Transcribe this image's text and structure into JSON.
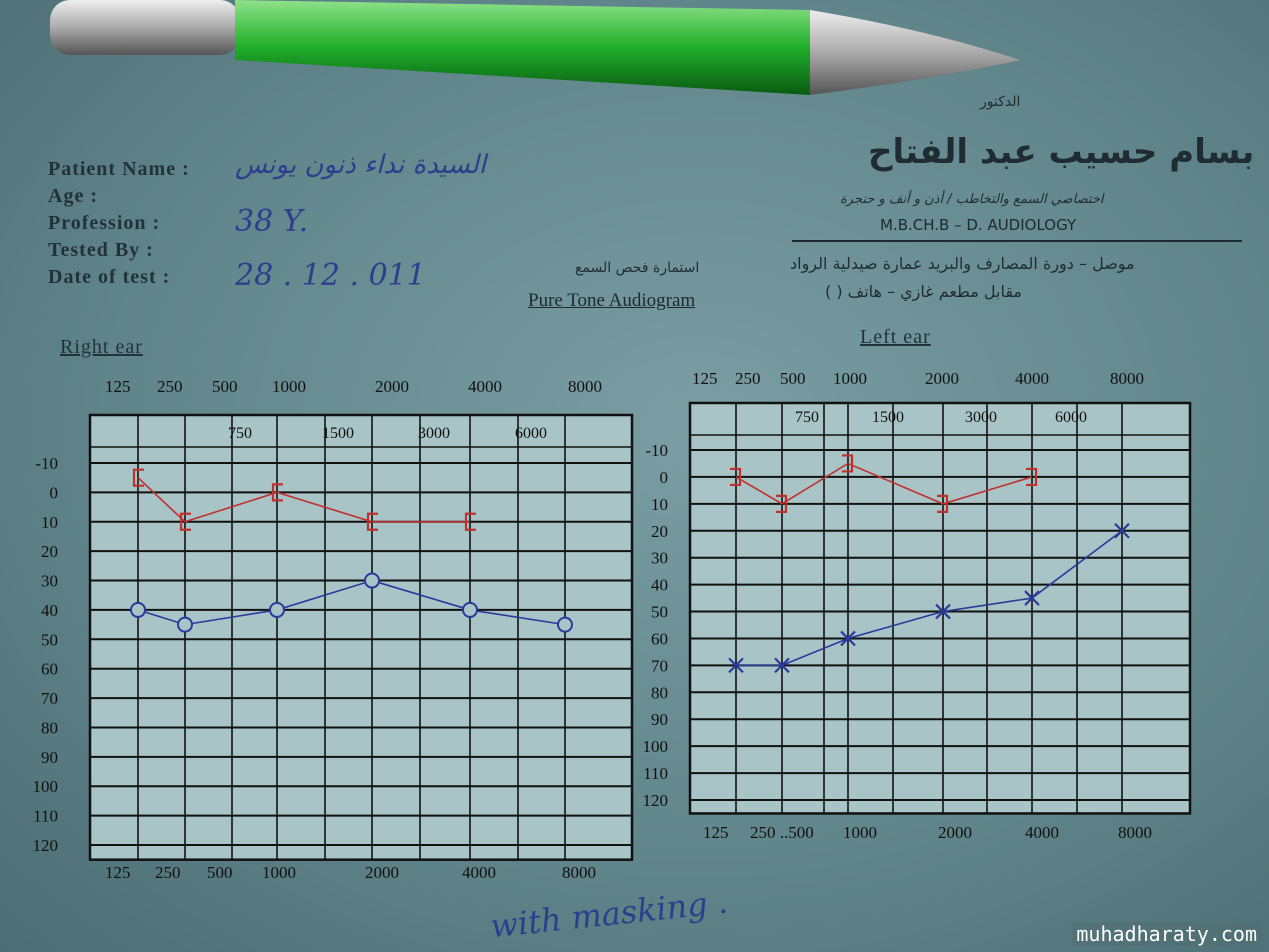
{
  "form": {
    "doctor_title": "الدكتور",
    "doctor_name": "بسام حسيب عبد الفتاح",
    "specialty": "اختصاصي السمع والتخاطب / أذن و أنف و حنجرة",
    "degree": "M.B.CH.B – D. AUDIOLOGY",
    "address_line1": "موصل – دورة المصارف والبريد عمارة صيدلية الرواد",
    "address_line2": "مقابل مطعم غازي – هاتف (   )",
    "form_title_ar": "استمارة فحص السمع",
    "form_title": "Pure Tone Audiogram",
    "fields": [
      {
        "label": "Patient Name :",
        "value": "السيدة نداء ذنون يونس"
      },
      {
        "label": "Age :",
        "value": ""
      },
      {
        "label": "Profession :",
        "value": "38 Y."
      },
      {
        "label": "Tested By :",
        "value": ""
      },
      {
        "label": "Date of test :",
        "value": "28 . 12 . 011"
      }
    ],
    "handwritten_note": "with masking .",
    "watermark": "muhadharaty.com"
  },
  "colors": {
    "air": "#2a3a9a",
    "bone": "#c0302e",
    "paper": "#7a9ea3",
    "pen": "#1fae2a"
  },
  "chart_data": [
    {
      "type": "line",
      "title": "Right ear",
      "main_freq_labels": [
        "125",
        "250",
        "500",
        "1000",
        "2000",
        "4000",
        "8000"
      ],
      "mid_freq_labels": [
        "750",
        "1500",
        "3000",
        "6000"
      ],
      "bottom_freq_labels": [
        "125",
        "250",
        "500",
        "1000",
        "2000",
        "4000",
        "8000"
      ],
      "y_tick_labels": [
        "-10",
        "0",
        "10",
        "20",
        "30",
        "40",
        "50",
        "60",
        "70",
        "80",
        "90",
        "100",
        "110",
        "120"
      ],
      "ylim": [
        -10,
        120
      ],
      "y_inverted": true,
      "grid": true,
      "series": [
        {
          "symbol": "bracket",
          "color": "#c0302e",
          "x": [
            250,
            500,
            1000,
            2000,
            4000
          ],
          "y": [
            -5,
            10,
            0,
            10,
            10
          ]
        },
        {
          "symbol": "circle",
          "color": "#2a3a9a",
          "x": [
            250,
            500,
            1000,
            2000,
            4000,
            8000
          ],
          "y": [
            40,
            45,
            40,
            30,
            40,
            45
          ]
        }
      ]
    },
    {
      "type": "line",
      "title": "Left ear",
      "main_freq_labels": [
        "125",
        "250",
        "500",
        "1000",
        "2000",
        "4000",
        "8000"
      ],
      "mid_freq_labels": [
        "750",
        "1500",
        "3000",
        "6000"
      ],
      "bottom_freq_labels": [
        "125",
        "250 ..500",
        "1000",
        "2000",
        "4000",
        "8000"
      ],
      "y_tick_labels": [
        "-10",
        "0",
        "10",
        "20",
        "30",
        "40",
        "50",
        "60",
        "70",
        "80",
        "90",
        "100",
        "110",
        "120"
      ],
      "ylim": [
        -10,
        120
      ],
      "y_inverted": true,
      "grid": true,
      "series": [
        {
          "symbol": "bracket",
          "color": "#c0302e",
          "x": [
            250,
            500,
            1000,
            2000,
            4000
          ],
          "y": [
            0,
            10,
            -5,
            10,
            0
          ]
        },
        {
          "symbol": "cross",
          "color": "#2a3a9a",
          "x": [
            250,
            500,
            1000,
            2000,
            4000,
            8000
          ],
          "y": [
            70,
            70,
            60,
            50,
            45,
            20
          ]
        }
      ]
    }
  ]
}
